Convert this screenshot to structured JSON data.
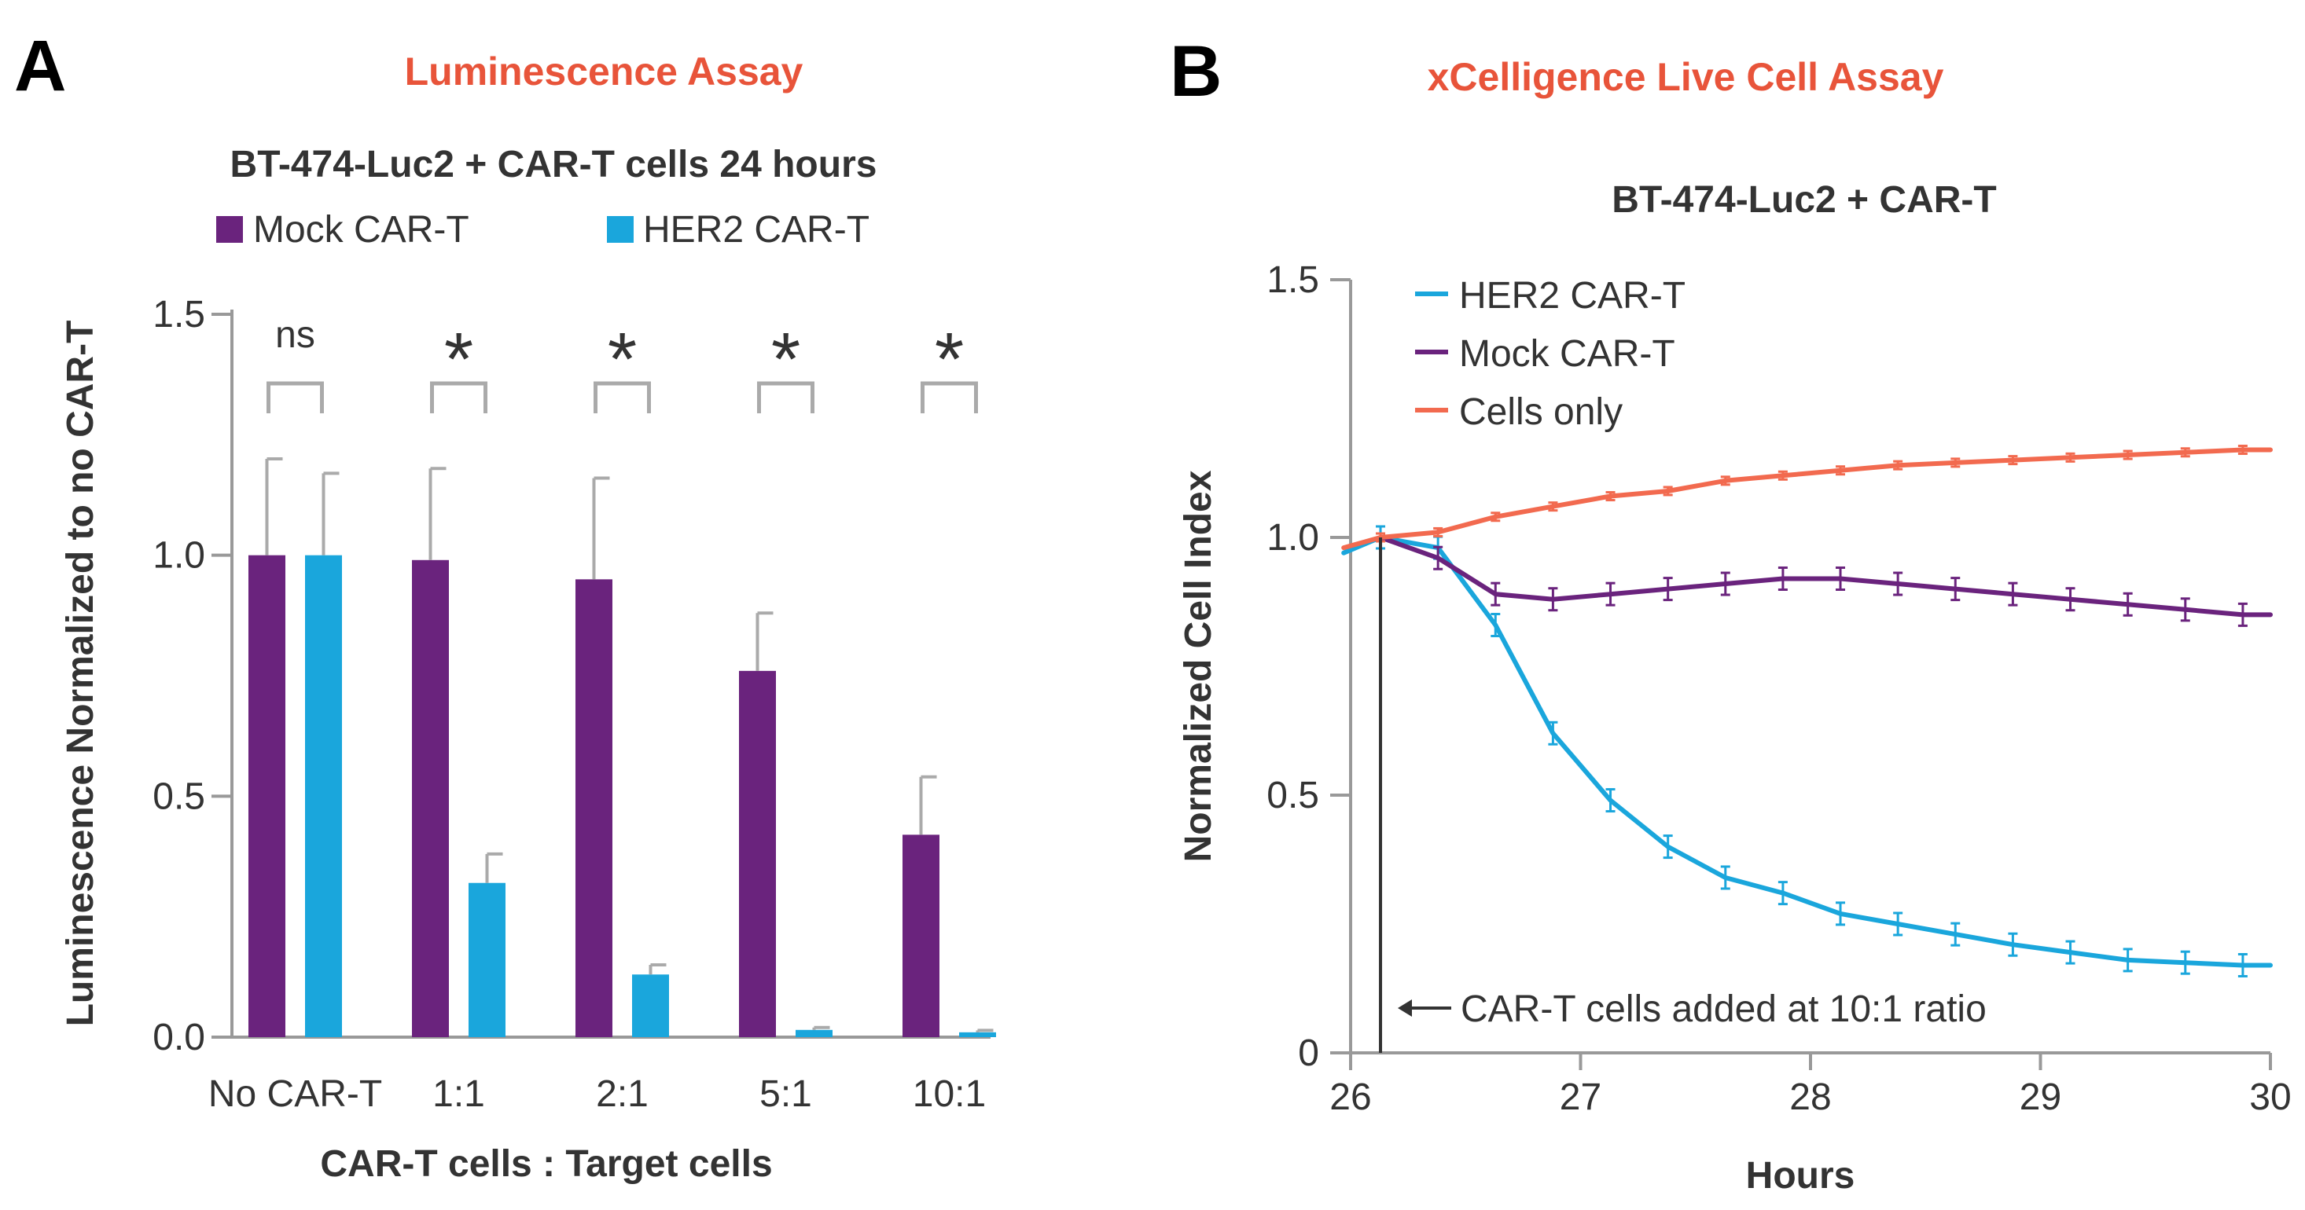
{
  "chart_data": [
    {
      "panel": "A",
      "type": "bar",
      "assay_title": "Luminescence Assay",
      "title": "BT-474-Luc2 + CAR-T cells 24 hours",
      "xlabel": "CAR-T cells : Target cells",
      "ylabel": "Luminescence Normalized to no CAR-T",
      "ylim": [
        0,
        1.5
      ],
      "yticks": [
        "0.0",
        "0.5",
        "1.0",
        "1.5"
      ],
      "categories": [
        "No CAR-T",
        "1:1",
        "2:1",
        "5:1",
        "10:1"
      ],
      "series": [
        {
          "name": "Mock CAR-T",
          "color": "#6a237d",
          "values": [
            1.0,
            0.99,
            0.95,
            0.76,
            0.42
          ],
          "errors": [
            0.2,
            0.19,
            0.21,
            0.12,
            0.12
          ]
        },
        {
          "name": "HER2 CAR-T",
          "color": "#1aa6dc",
          "values": [
            1.0,
            0.32,
            0.13,
            0.015,
            0.01
          ],
          "errors": [
            0.17,
            0.06,
            0.02,
            0.005,
            0.004
          ]
        }
      ],
      "significance": [
        "ns",
        "*",
        "*",
        "*",
        "*"
      ]
    },
    {
      "panel": "B",
      "type": "line",
      "assay_title": "xCelligence Live Cell Assay",
      "title": "BT-474-Luc2 + CAR-T",
      "xlabel": "Hours",
      "ylabel": "Normalized Cell Index",
      "xlim": [
        26,
        30
      ],
      "ylim": [
        0,
        1.5
      ],
      "xticks": [
        "26",
        "27",
        "28",
        "29",
        "30"
      ],
      "yticks": [
        "0",
        "0.5",
        "1.0",
        "1.5"
      ],
      "series": [
        {
          "name": "HER2 CAR-T",
          "color": "#1aa6dc",
          "x": [
            25.97,
            26.13,
            26.38,
            26.63,
            26.88,
            27.13,
            27.38,
            27.63,
            27.88,
            28.13,
            28.38,
            28.63,
            28.88,
            29.13,
            29.38,
            29.63,
            29.88,
            30.0
          ],
          "y": [
            0.97,
            1.0,
            0.98,
            0.83,
            0.62,
            0.49,
            0.4,
            0.34,
            0.31,
            0.27,
            0.25,
            0.23,
            0.21,
            0.195,
            0.18,
            0.175,
            0.17,
            0.17
          ]
        },
        {
          "name": "Mock CAR-T",
          "color": "#6a237d",
          "x": [
            26.13,
            26.38,
            26.63,
            26.88,
            27.13,
            27.38,
            27.63,
            27.88,
            28.13,
            28.38,
            28.63,
            28.88,
            29.13,
            29.38,
            29.63,
            29.88,
            30.0
          ],
          "y": [
            1.0,
            0.96,
            0.89,
            0.88,
            0.89,
            0.9,
            0.91,
            0.92,
            0.92,
            0.91,
            0.9,
            0.89,
            0.88,
            0.87,
            0.86,
            0.85,
            0.85
          ]
        },
        {
          "name": "Cells only",
          "color": "#f26a4f",
          "x": [
            25.97,
            26.13,
            26.38,
            26.63,
            26.88,
            27.13,
            27.38,
            27.63,
            27.88,
            28.13,
            28.38,
            28.63,
            28.88,
            29.13,
            29.38,
            29.63,
            29.88,
            30.0
          ],
          "y": [
            0.98,
            1.0,
            1.01,
            1.04,
            1.06,
            1.08,
            1.09,
            1.11,
            1.12,
            1.13,
            1.14,
            1.145,
            1.15,
            1.155,
            1.16,
            1.165,
            1.17,
            1.17
          ]
        }
      ],
      "annotation": {
        "x": 26.13,
        "text": "CAR-T cells added at 10:1 ratio"
      }
    }
  ]
}
